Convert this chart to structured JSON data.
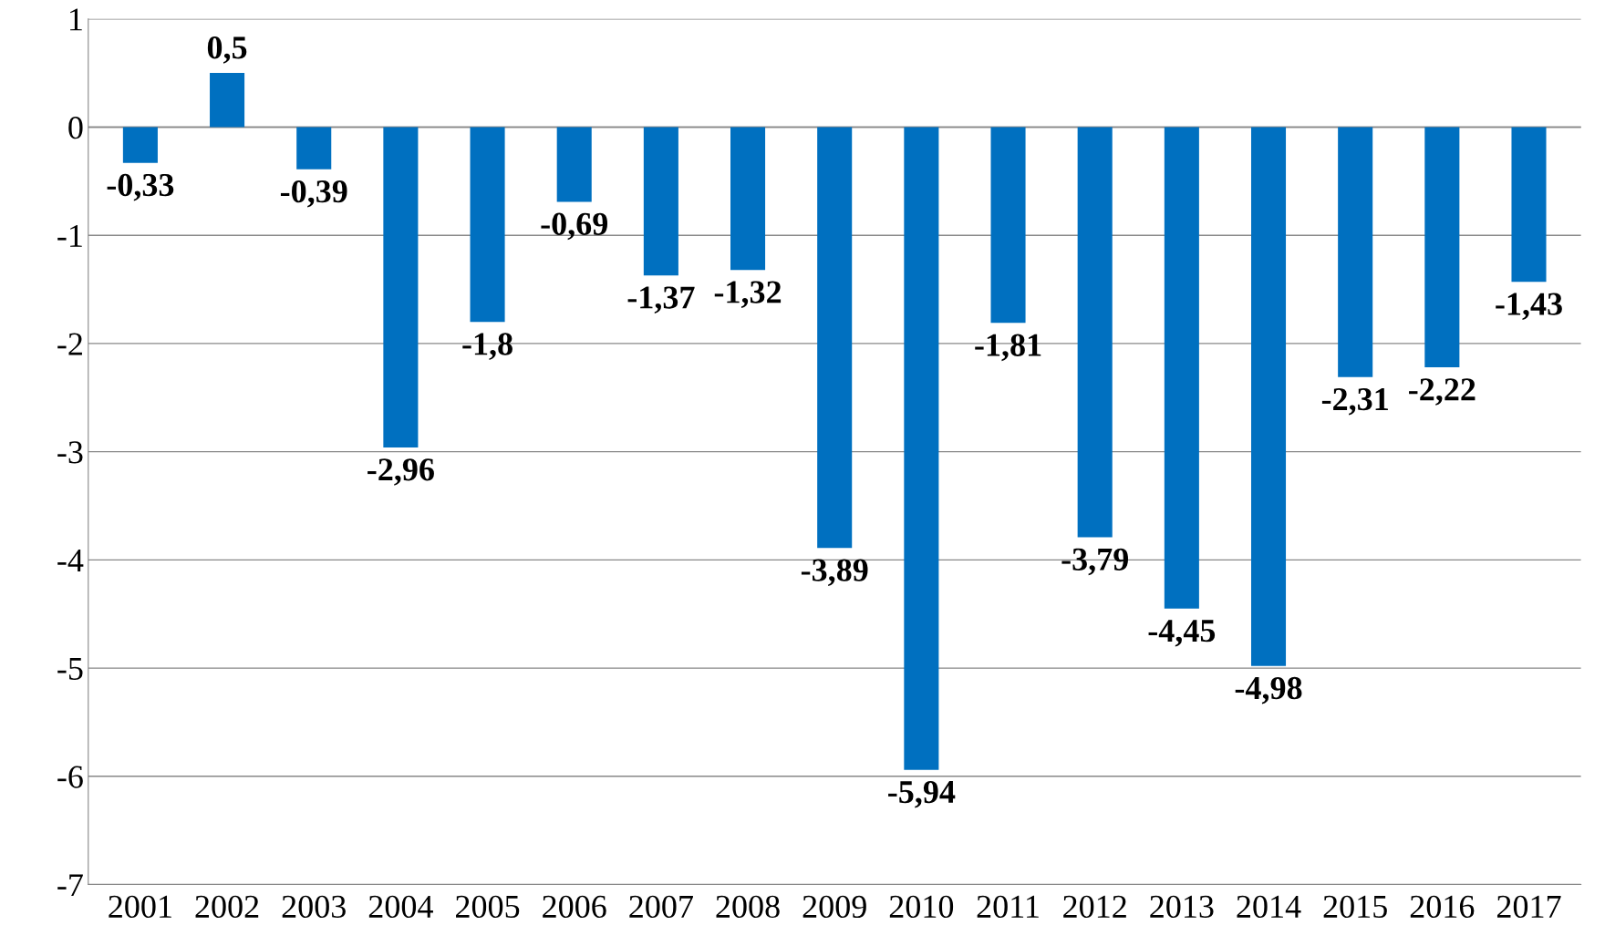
{
  "chart_data": {
    "type": "bar",
    "categories": [
      "2001",
      "2002",
      "2003",
      "2004",
      "2005",
      "2006",
      "2007",
      "2008",
      "2009",
      "2010",
      "2011",
      "2012",
      "2013",
      "2014",
      "2015",
      "2016",
      "2017"
    ],
    "values": [
      -0.33,
      0.5,
      -0.39,
      -2.96,
      -1.8,
      -0.69,
      -1.37,
      -1.32,
      -3.89,
      -5.94,
      -1.81,
      -3.79,
      -4.45,
      -4.98,
      -2.31,
      -2.22,
      -1.43
    ],
    "value_labels": [
      "-0,33",
      "0,5",
      "-0,39",
      "-2,96",
      "-1,8",
      "-0,69",
      "-1,37",
      "-1,32",
      "-3,89",
      "-5,94",
      "-1,81",
      "-3,79",
      "-4,45",
      "-4,98",
      "-2,31",
      "-2,22",
      "-1,43"
    ],
    "color": "#0070c0",
    "ylim": [
      -7,
      1
    ],
    "yticks": [
      -7,
      -6,
      -5,
      -4,
      -3,
      -2,
      -1,
      0,
      1
    ],
    "grid": "y",
    "legend": false
  }
}
